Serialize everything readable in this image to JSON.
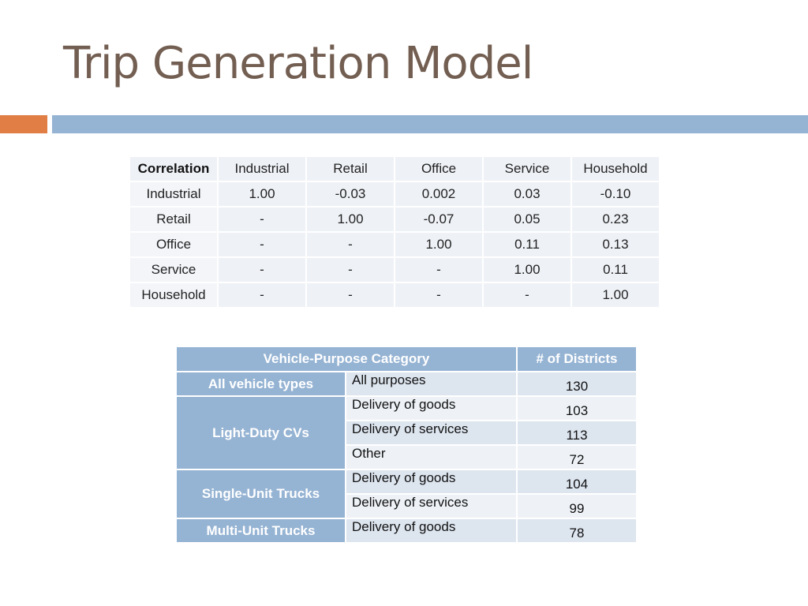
{
  "title": "Trip Generation Model",
  "colors": {
    "title": "#735e52",
    "accent_orange": "#e07e45",
    "accent_blue": "#95b3d3"
  },
  "correlation_table": {
    "header": [
      "Correlation",
      "Industrial",
      "Retail",
      "Office",
      "Service",
      "Household"
    ],
    "rows": [
      [
        "Industrial",
        "1.00",
        "-0.03",
        "0.002",
        "0.03",
        "-0.10"
      ],
      [
        "Retail",
        "-",
        "1.00",
        "-0.07",
        "0.05",
        "0.23"
      ],
      [
        "Office",
        "-",
        "-",
        "1.00",
        "0.11",
        "0.13"
      ],
      [
        "Service",
        "-",
        "-",
        "-",
        "1.00",
        "0.11"
      ],
      [
        "Household",
        "-",
        "-",
        "-",
        "-",
        "1.00"
      ]
    ]
  },
  "vehicle_table": {
    "header_category": "Vehicle-Purpose Category",
    "header_count": "# of Districts",
    "groups": [
      {
        "vehicle": "All vehicle types",
        "rows": [
          {
            "purpose": "All purposes",
            "count": "130"
          }
        ]
      },
      {
        "vehicle": "Light-Duty CVs",
        "rows": [
          {
            "purpose": "Delivery of goods",
            "count": "103"
          },
          {
            "purpose": "Delivery of services",
            "count": "113"
          },
          {
            "purpose": "Other",
            "count": "72"
          }
        ]
      },
      {
        "vehicle": "Single-Unit Trucks",
        "rows": [
          {
            "purpose": "Delivery of goods",
            "count": "104"
          },
          {
            "purpose": "Delivery of services",
            "count": "99"
          }
        ]
      },
      {
        "vehicle": "Multi-Unit Trucks",
        "rows": [
          {
            "purpose": "Delivery of goods",
            "count": "78"
          }
        ]
      }
    ]
  }
}
